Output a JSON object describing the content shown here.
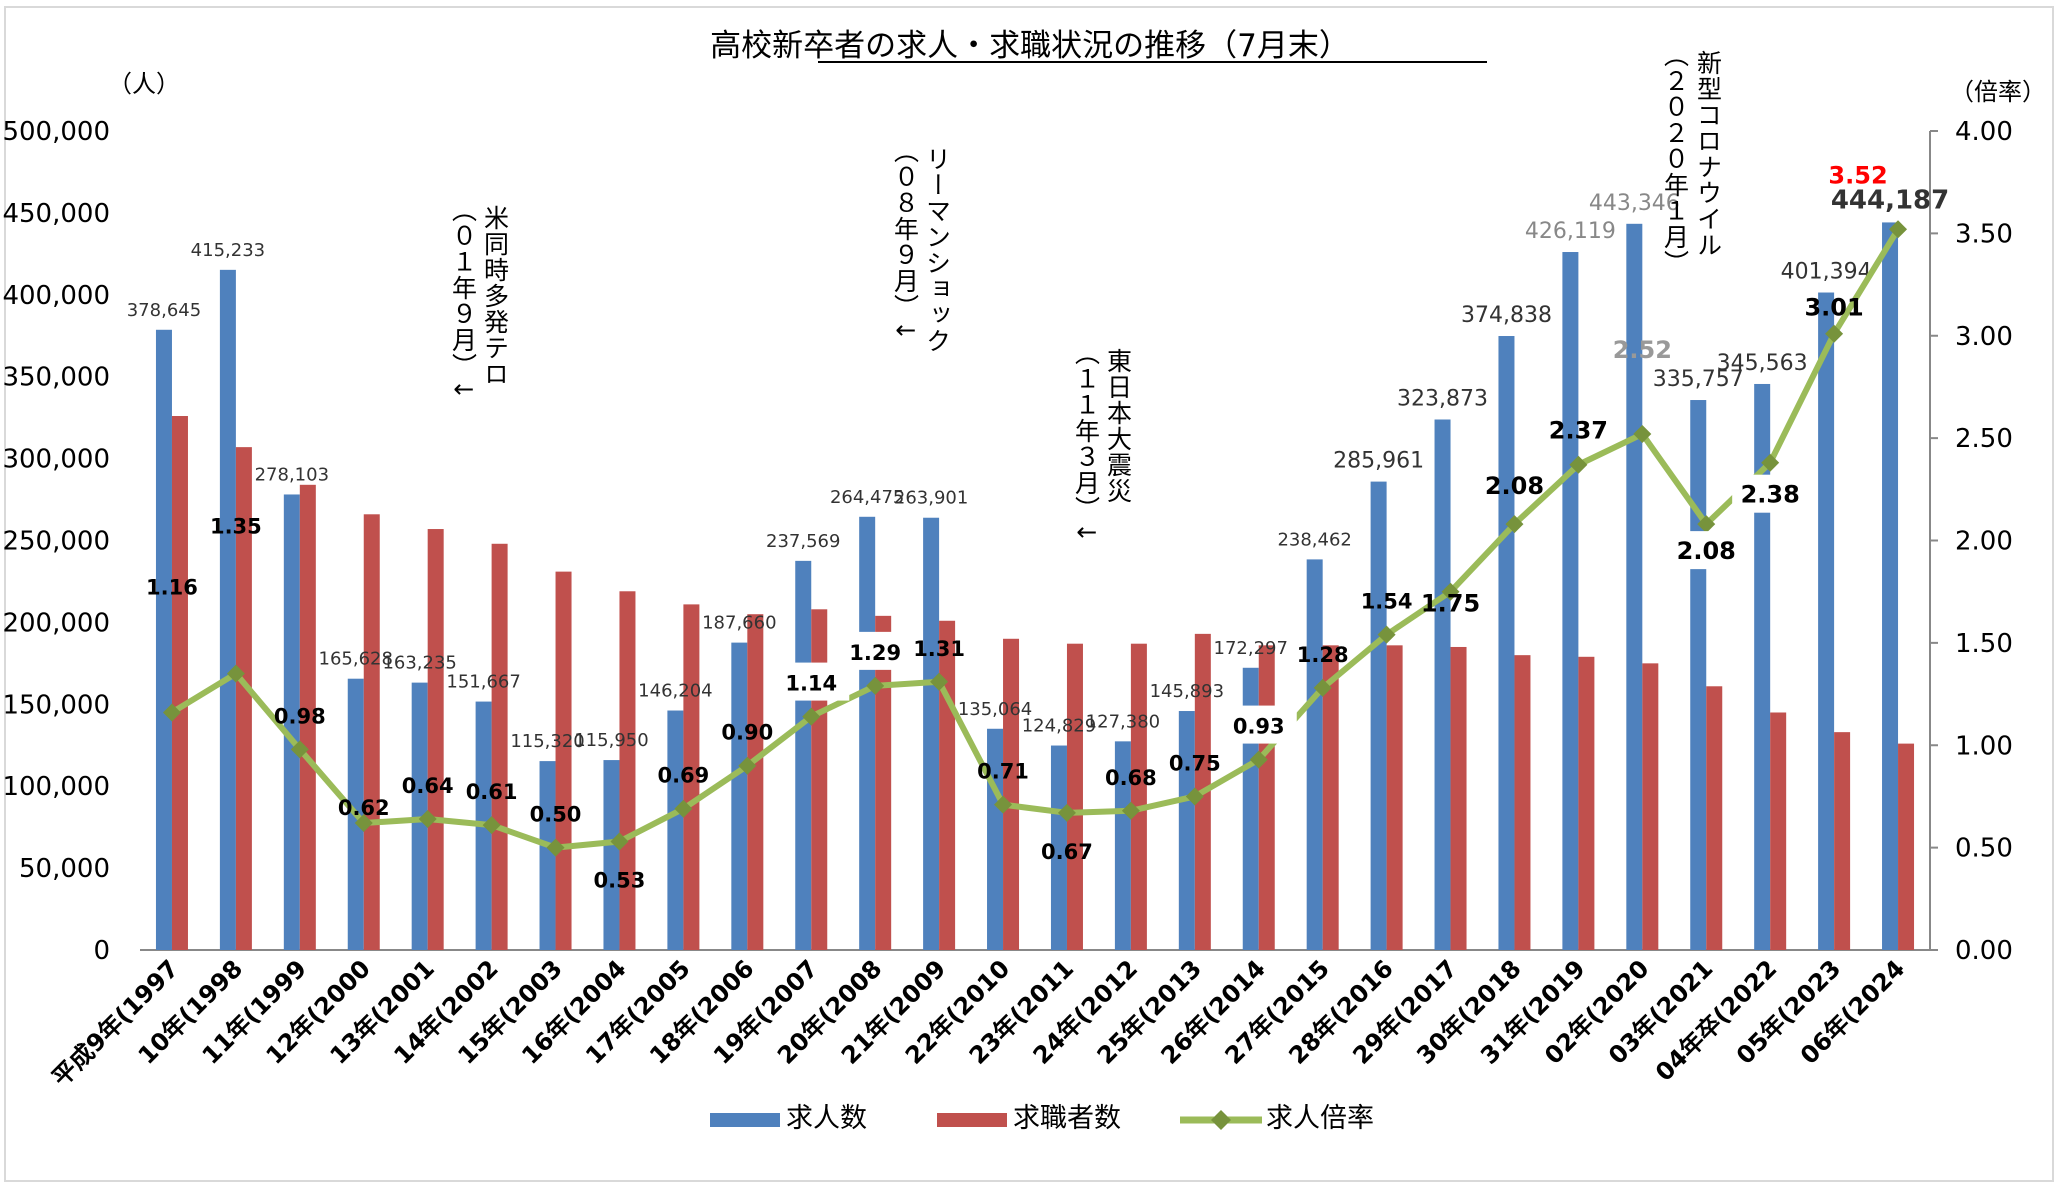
{
  "chart_data": {
    "type": "bar+line",
    "title": "高校新卒者の求人・求職状況の推移（7月末）",
    "y_left_unit": "（人）",
    "y_right_unit": "（倍率）",
    "ylim_left": [
      0,
      500000
    ],
    "ylim_right": [
      0,
      4
    ],
    "y_left_ticks": [
      "0",
      "50,000",
      "100,000",
      "150,000",
      "200,000",
      "250,000",
      "300,000",
      "350,000",
      "400,000",
      "450,000",
      "500,000"
    ],
    "y_right_ticks": [
      "0.00",
      "0.50",
      "1.00",
      "1.50",
      "2.00",
      "2.50",
      "3.00",
      "3.50",
      "4.00"
    ],
    "categories": [
      "平成9年(1997",
      "10年(1998",
      "11年(1999",
      "12年(2000",
      "13年(2001",
      "14年(2002",
      "15年(2003",
      "16年(2004",
      "17年(2005",
      "18年(2006",
      "19年(2007",
      "20年(2008",
      "21年(2009",
      "22年(2010",
      "23年(2011",
      "24年(2012",
      "25年(2013",
      "26年(2014",
      "27年(2015",
      "28年(2016",
      "29年(2017",
      "30年(2018",
      "31年(2019",
      "02年(2020",
      "03年(2021",
      "04年卒(2022",
      "05年(2023",
      "06年(2024"
    ],
    "series": [
      {
        "name": "求人数",
        "color": "#4f81bd",
        "values": [
          378645,
          415233,
          278103,
          165628,
          163235,
          151667,
          115320,
          115950,
          146204,
          187660,
          237569,
          264475,
          263901,
          135064,
          124829,
          127380,
          145893,
          172297,
          238462,
          285961,
          323873,
          374838,
          426119,
          443346,
          335757,
          345563,
          401394,
          444187
        ],
        "labels": [
          "378,645",
          "415,233",
          "278,103",
          "165,628",
          "163,235",
          "151,667",
          "115,320",
          "115,950",
          "146,204",
          "187,660",
          "237,569",
          "264,475",
          "263,901",
          "135,064",
          "124,829",
          "127,380",
          "145,893",
          "172,297",
          "238,462",
          "285,961",
          "323,873",
          "374,838",
          "426,119",
          "443,346",
          "335,757",
          "345,563",
          "401,394",
          "444,187"
        ]
      },
      {
        "name": "求職者数",
        "color": "#c0504d",
        "values": [
          326000,
          307000,
          284000,
          266000,
          257000,
          248000,
          231000,
          219000,
          211000,
          205000,
          208000,
          204000,
          201000,
          190000,
          187000,
          187000,
          193000,
          186000,
          186000,
          186000,
          185000,
          180000,
          179000,
          175000,
          161000,
          145000,
          133000,
          126000
        ]
      },
      {
        "name": "求人倍率",
        "color": "#9bbb59",
        "values": [
          1.16,
          1.35,
          0.98,
          0.62,
          0.64,
          0.61,
          0.5,
          0.53,
          0.69,
          0.9,
          1.14,
          1.29,
          1.31,
          0.71,
          0.67,
          0.68,
          0.75,
          0.93,
          1.28,
          1.54,
          1.75,
          2.08,
          2.37,
          2.52,
          2.08,
          2.38,
          3.01,
          3.52
        ],
        "labels": [
          "1.16",
          "1.35",
          "0.98",
          "0.62",
          "0.64",
          "0.61",
          "0.50",
          "0.53",
          "0.69",
          "0.90",
          "1.14",
          "1.29",
          "1.31",
          "0.71",
          "0.67",
          "0.68",
          "0.75",
          "0.93",
          "1.28",
          "1.54",
          "1.75",
          "2.08",
          "2.37",
          "2.52",
          "2.08",
          "2.38",
          "3.01",
          "3.52"
        ]
      }
    ],
    "annotations": [
      {
        "lines": [
          "米同時多発テロ",
          "（０１年９月）↓"
        ]
      },
      {
        "lines": [
          "リーマンショック",
          "（０８年９月）↓"
        ]
      },
      {
        "lines": [
          "東日本大震災",
          "（１１年３月）↓"
        ]
      },
      {
        "lines": [
          "新型コロナウイル",
          "（２０２０年１月）"
        ]
      }
    ],
    "legend": [
      "求人数",
      "求職者数",
      "求人倍率"
    ],
    "grid": false,
    "legend_position": "bottom"
  }
}
